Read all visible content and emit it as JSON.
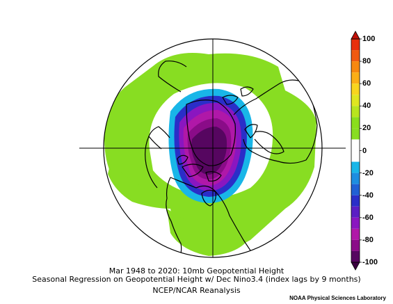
{
  "title_line1": "Mar 1948 to 2020: 10mb Geopotential Height",
  "title_line2": "Seasonal Regression on Geopotential Height  w/ Dec Nino3.4 (index lags by 9 months)",
  "source_label": "NCEP/NCAR Reanalysis",
  "credit_label": "NOAA Physical Sciences Laboratory",
  "colorbar": {
    "tick_labels": [
      "100",
      "80",
      "60",
      "40",
      "20",
      "0",
      "-20",
      "-40",
      "-60",
      "-80",
      "-100"
    ],
    "bins": [
      {
        "from": 90,
        "to": 100,
        "color": "#e8300c"
      },
      {
        "from": 80,
        "to": 90,
        "color": "#f05a10"
      },
      {
        "from": 70,
        "to": 80,
        "color": "#f7880f"
      },
      {
        "from": 60,
        "to": 70,
        "color": "#fbae16"
      },
      {
        "from": 50,
        "to": 60,
        "color": "#f8d51e"
      },
      {
        "from": 40,
        "to": 50,
        "color": "#dfe620"
      },
      {
        "from": 30,
        "to": 40,
        "color": "#b8e51e"
      },
      {
        "from": 20,
        "to": 30,
        "color": "#8ade1c"
      },
      {
        "from": 10,
        "to": 20,
        "color": "#88dd22"
      },
      {
        "from": -10,
        "to": 10,
        "color": "#ffffff"
      },
      {
        "from": -20,
        "to": -10,
        "color": "#19b6e8"
      },
      {
        "from": -30,
        "to": -20,
        "color": "#1d8ee0"
      },
      {
        "from": -40,
        "to": -30,
        "color": "#2060d4"
      },
      {
        "from": -50,
        "to": -40,
        "color": "#2a2ec8"
      },
      {
        "from": -60,
        "to": -50,
        "color": "#5a1ec4"
      },
      {
        "from": -70,
        "to": -60,
        "color": "#8a16c0"
      },
      {
        "from": -80,
        "to": -70,
        "color": "#b018a8"
      },
      {
        "from": -90,
        "to": -80,
        "color": "#8a0c88"
      },
      {
        "from": -100,
        "to": -90,
        "color": "#560660"
      }
    ],
    "under_color": "#3a0040",
    "over_color": "#c01008"
  },
  "map": {
    "projection": "north polar stereographic",
    "colors": {
      "green": "#88dd22",
      "cyan": "#19b6e8",
      "blue": "#2a2ec8",
      "purple": "#8a16c0",
      "magenta": "#b018a8",
      "dark_purple": "#560660",
      "coast": "#000000"
    }
  }
}
